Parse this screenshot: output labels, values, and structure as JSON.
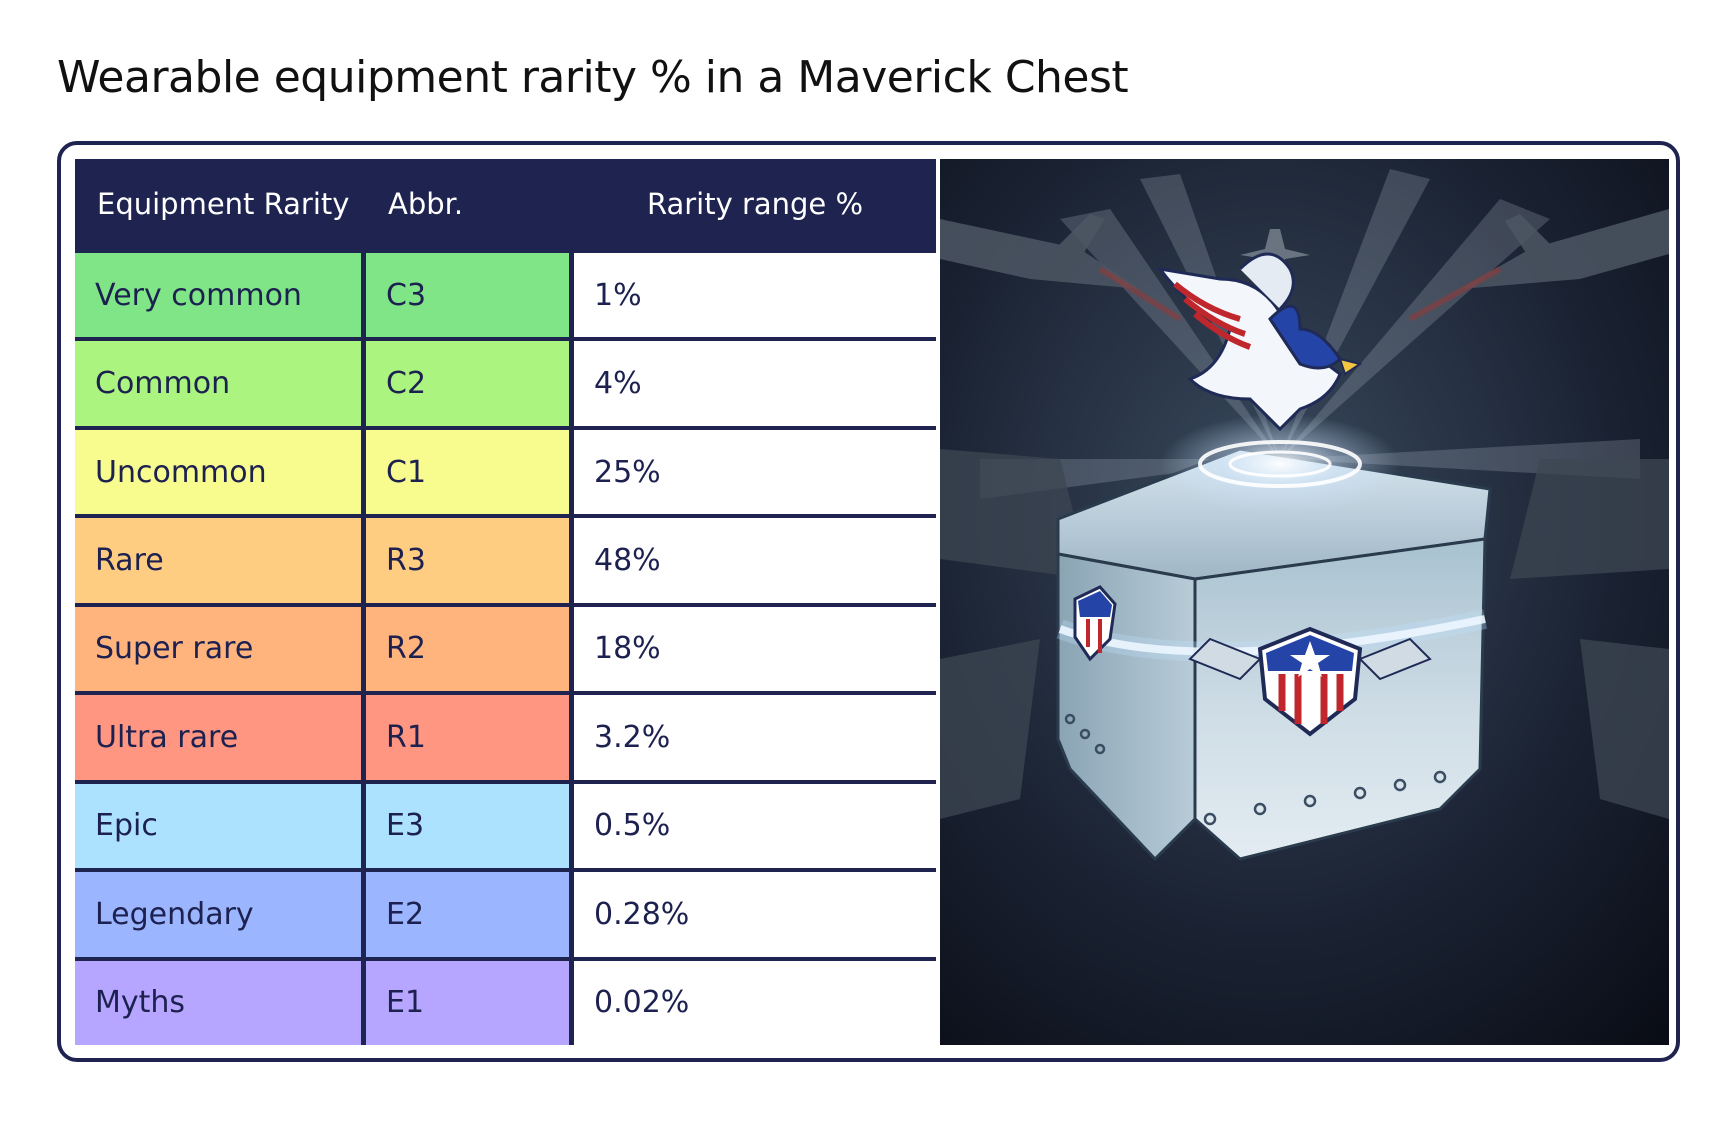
{
  "title": "Wearable equipment rarity % in a Maverick Chest",
  "table": {
    "headers": [
      "Equipment Rarity",
      "Abbr.",
      "Rarity range %"
    ],
    "rows": [
      {
        "rarity": "Very common",
        "abbr": "C3",
        "range": "1%",
        "color": "#7fe586"
      },
      {
        "rarity": "Common",
        "abbr": "C2",
        "range": "4%",
        "color": "#aaf47f"
      },
      {
        "rarity": "Uncommon",
        "abbr": "C1",
        "range": "25%",
        "color": "#f8fb8d"
      },
      {
        "rarity": "Rare",
        "abbr": "R3",
        "range": "48%",
        "color": "#ffcd82"
      },
      {
        "rarity": "Super rare",
        "abbr": "R2",
        "range": "18%",
        "color": "#ffb47e"
      },
      {
        "rarity": "Ultra rare",
        "abbr": "R1",
        "range": "3.2%",
        "color": "#ff9681"
      },
      {
        "rarity": "Epic",
        "abbr": "E3",
        "range": "0.5%",
        "color": "#ade2fe"
      },
      {
        "rarity": "Legendary",
        "abbr": "E2",
        "range": "0.28%",
        "color": "#9bb5ff"
      },
      {
        "rarity": "Myths",
        "abbr": "E1",
        "range": "0.02%",
        "color": "#b7a6ff"
      }
    ]
  },
  "colors": {
    "border": "#1f2350",
    "header_bg": "#1f2350",
    "text": "#1d2150"
  },
  "illustration": {
    "subject": "glowing steel loot chest with eagle emblem and fighter jets"
  }
}
